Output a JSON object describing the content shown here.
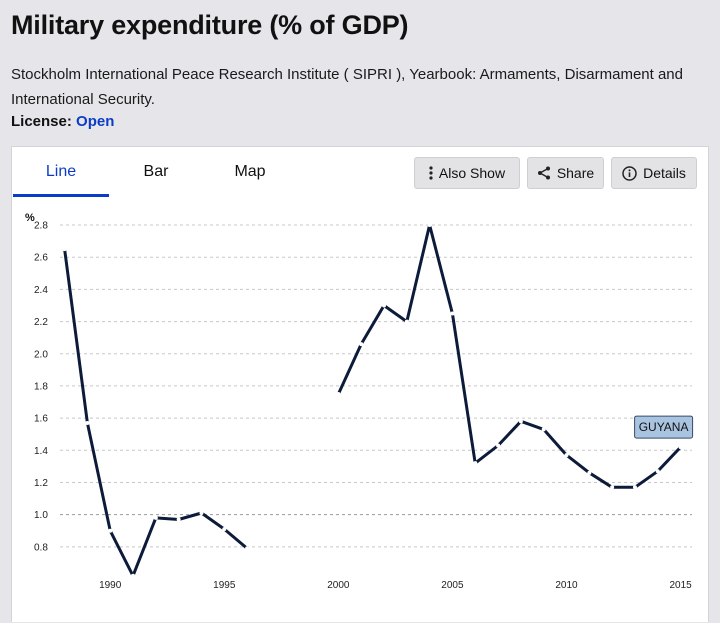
{
  "header": {
    "title": "Military expenditure (% of GDP)",
    "source": "Stockholm International Peace Research Institute ( SIPRI ), Yearbook: Armaments, Disarmament and International Security.",
    "license_label": "License:",
    "license_value": "Open"
  },
  "tabs": [
    {
      "label": "Line",
      "active": true
    },
    {
      "label": "Bar",
      "active": false
    },
    {
      "label": "Map",
      "active": false
    }
  ],
  "actions": {
    "also_show": "Also Show",
    "share": "Share",
    "details": "Details"
  },
  "colors": {
    "accent": "#0b3cc7",
    "line": "#0d1b3a",
    "label_bg": "#a9c4e0"
  },
  "chart_data": {
    "type": "line",
    "title": "",
    "ylabel": "%",
    "xlabel": "",
    "xlim": [
      1987.8,
      2015.5
    ],
    "ylim": [
      0.6,
      2.85
    ],
    "y_ticks": [
      0.8,
      1.0,
      1.2,
      1.4,
      1.6,
      1.8,
      2.0,
      2.2,
      2.4,
      2.6,
      2.8
    ],
    "y_tick_labels": [
      "0.8",
      "1.0",
      "1.2",
      "1.4",
      "1.6",
      "1.8",
      "2.0",
      "2.2",
      "2.4",
      "2.6",
      "2.8"
    ],
    "x_ticks": [
      1990,
      1995,
      2000,
      2005,
      2010,
      2015
    ],
    "x_tick_labels": [
      "1990",
      "1995",
      "2000",
      "2005",
      "2010",
      "2015"
    ],
    "grid": true,
    "series": [
      {
        "name": "GUYANA",
        "points": [
          [
            1988,
            2.65
          ],
          [
            1989,
            1.57
          ],
          [
            1990,
            0.9
          ],
          [
            1991,
            0.62
          ],
          [
            1992,
            0.98
          ],
          [
            1993,
            0.97
          ],
          [
            1994,
            1.01
          ],
          [
            1995,
            0.91
          ],
          [
            1996,
            0.79
          ],
          [
            1997,
            null
          ],
          [
            1998,
            null
          ],
          [
            1999,
            null
          ],
          [
            2000,
            1.75
          ],
          [
            2001,
            2.06
          ],
          [
            2002,
            2.3
          ],
          [
            2003,
            2.2
          ],
          [
            2004,
            2.8
          ],
          [
            2005,
            2.25
          ],
          [
            2006,
            1.32
          ],
          [
            2007,
            1.43
          ],
          [
            2008,
            1.58
          ],
          [
            2009,
            1.53
          ],
          [
            2010,
            1.37
          ],
          [
            2011,
            1.26
          ],
          [
            2012,
            1.17
          ],
          [
            2013,
            1.17
          ],
          [
            2014,
            1.27
          ],
          [
            2015,
            1.42
          ]
        ]
      }
    ]
  }
}
